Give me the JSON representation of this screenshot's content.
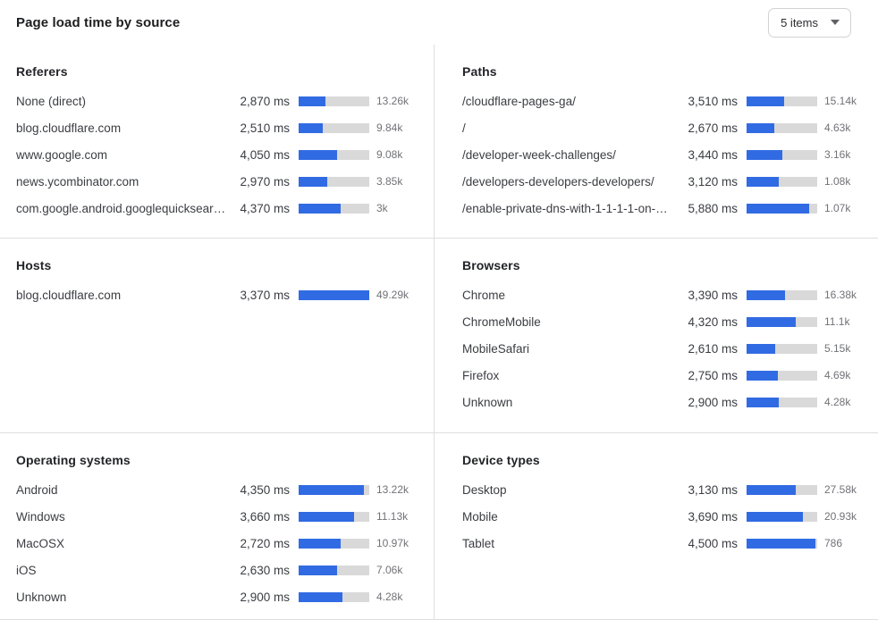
{
  "header": {
    "title": "Page load time by source",
    "dropdown": {
      "label": "5 items",
      "icon": "caret-down"
    }
  },
  "colors": {
    "accent_blue": "#316be3",
    "bar_track": "#d9d9d9",
    "divider": "#dededf",
    "title_text": "#1d1e20",
    "label_text": "#3b3d42",
    "count_text": "#717277"
  },
  "panels": [
    {
      "title": "Referers",
      "rows": [
        {
          "label": "None (direct)",
          "time": "2,870 ms",
          "count": "13.26k",
          "bar_pct": 38
        },
        {
          "label": "blog.cloudflare.com",
          "time": "2,510 ms",
          "count": "9.84k",
          "bar_pct": 34
        },
        {
          "label": "www.google.com",
          "time": "4,050 ms",
          "count": "9.08k",
          "bar_pct": 54
        },
        {
          "label": "news.ycombinator.com",
          "time": "2,970 ms",
          "count": "3.85k",
          "bar_pct": 40
        },
        {
          "label": "com.google.android.googlequicksearc…",
          "time": "4,370 ms",
          "count": "3k",
          "bar_pct": 59
        }
      ]
    },
    {
      "title": "Paths",
      "rows": [
        {
          "label": "/cloudflare-pages-ga/",
          "time": "3,510 ms",
          "count": "15.14k",
          "bar_pct": 53
        },
        {
          "label": "/",
          "time": "2,670 ms",
          "count": "4.63k",
          "bar_pct": 39
        },
        {
          "label": "/developer-week-challenges/",
          "time": "3,440 ms",
          "count": "3.16k",
          "bar_pct": 51
        },
        {
          "label": "/developers-developers-developers/",
          "time": "3,120 ms",
          "count": "1.08k",
          "bar_pct": 46
        },
        {
          "label": "/enable-private-dns-with-1-1-1-1-on-…",
          "time": "5,880 ms",
          "count": "1.07k",
          "bar_pct": 88
        }
      ]
    },
    {
      "title": "Hosts",
      "rows": [
        {
          "label": "blog.cloudflare.com",
          "time": "3,370 ms",
          "count": "49.29k",
          "bar_pct": 100
        }
      ]
    },
    {
      "title": "Browsers",
      "rows": [
        {
          "label": "Chrome",
          "time": "3,390 ms",
          "count": "16.38k",
          "bar_pct": 54
        },
        {
          "label": "ChromeMobile",
          "time": "4,320 ms",
          "count": "11.1k",
          "bar_pct": 70
        },
        {
          "label": "MobileSafari",
          "time": "2,610 ms",
          "count": "5.15k",
          "bar_pct": 41
        },
        {
          "label": "Firefox",
          "time": "2,750 ms",
          "count": "4.69k",
          "bar_pct": 44
        },
        {
          "label": "Unknown",
          "time": "2,900 ms",
          "count": "4.28k",
          "bar_pct": 46
        }
      ]
    },
    {
      "title": "Operating systems",
      "rows": [
        {
          "label": "Android",
          "time": "4,350 ms",
          "count": "13.22k",
          "bar_pct": 93
        },
        {
          "label": "Windows",
          "time": "3,660 ms",
          "count": "11.13k",
          "bar_pct": 78
        },
        {
          "label": "MacOSX",
          "time": "2,720 ms",
          "count": "10.97k",
          "bar_pct": 59
        },
        {
          "label": "iOS",
          "time": "2,630 ms",
          "count": "7.06k",
          "bar_pct": 55
        },
        {
          "label": "Unknown",
          "time": "2,900 ms",
          "count": "4.28k",
          "bar_pct": 62
        }
      ]
    },
    {
      "title": "Device types",
      "rows": [
        {
          "label": "Desktop",
          "time": "3,130 ms",
          "count": "27.58k",
          "bar_pct": 69
        },
        {
          "label": "Mobile",
          "time": "3,690 ms",
          "count": "20.93k",
          "bar_pct": 80
        },
        {
          "label": "Tablet",
          "time": "4,500 ms",
          "count": "786",
          "bar_pct": 98
        }
      ]
    }
  ]
}
